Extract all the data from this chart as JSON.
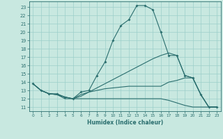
{
  "xlabel": "Humidex (Indice chaleur)",
  "xlim": [
    -0.5,
    23.5
  ],
  "ylim": [
    10.5,
    23.7
  ],
  "yticks": [
    11,
    12,
    13,
    14,
    15,
    16,
    17,
    18,
    19,
    20,
    21,
    22,
    23
  ],
  "xticks": [
    0,
    1,
    2,
    3,
    4,
    5,
    6,
    7,
    8,
    9,
    10,
    11,
    12,
    13,
    14,
    15,
    16,
    17,
    18,
    19,
    20,
    21,
    22,
    23
  ],
  "bg_color": "#c8e8e0",
  "line_color": "#2a6e6e",
  "grid_color": "#9ccfca",
  "line0_x": [
    0,
    1,
    2,
    3,
    4,
    5,
    6,
    7,
    8,
    9,
    10,
    11,
    12,
    13,
    14,
    15,
    16,
    17,
    18,
    19,
    20,
    21,
    22,
    23
  ],
  "line0_y": [
    13.8,
    13.0,
    12.6,
    12.6,
    12.2,
    12.0,
    12.8,
    13.0,
    14.8,
    16.4,
    19.0,
    20.8,
    21.5,
    23.2,
    23.2,
    22.7,
    20.0,
    17.2,
    17.2,
    14.8,
    14.5,
    12.5,
    11.0,
    11.0
  ],
  "line1_x": [
    0,
    1,
    2,
    3,
    4,
    5,
    6,
    7,
    8,
    9,
    10,
    11,
    12,
    13,
    14,
    15,
    16,
    17,
    18,
    19,
    20,
    21,
    22,
    23
  ],
  "line1_y": [
    13.8,
    13.0,
    12.6,
    12.5,
    12.2,
    12.0,
    12.5,
    12.8,
    13.0,
    13.2,
    13.3,
    13.4,
    13.5,
    13.5,
    13.5,
    13.5,
    13.5,
    14.0,
    14.2,
    14.5,
    14.5,
    12.5,
    11.0,
    11.0
  ],
  "line2_x": [
    0,
    1,
    2,
    3,
    4,
    5,
    6,
    7,
    8,
    9,
    10,
    11,
    12,
    13,
    14,
    15,
    16,
    17,
    18,
    19,
    20,
    21,
    22,
    23
  ],
  "line2_y": [
    13.8,
    13.0,
    12.6,
    12.5,
    12.2,
    12.0,
    12.3,
    12.8,
    13.3,
    13.8,
    14.3,
    14.8,
    15.3,
    15.8,
    16.3,
    16.8,
    17.2,
    17.5,
    17.2,
    14.8,
    14.5,
    12.5,
    11.0,
    11.0
  ],
  "line3_x": [
    0,
    1,
    2,
    3,
    4,
    5,
    6,
    7,
    8,
    9,
    10,
    11,
    12,
    13,
    14,
    15,
    16,
    17,
    18,
    19,
    20,
    21,
    22,
    23
  ],
  "line3_y": [
    13.8,
    13.0,
    12.6,
    12.5,
    12.0,
    12.0,
    12.0,
    12.0,
    12.0,
    12.0,
    12.0,
    12.0,
    12.0,
    12.0,
    12.0,
    12.0,
    12.0,
    11.8,
    11.5,
    11.2,
    11.0,
    11.0,
    11.0,
    11.0
  ]
}
